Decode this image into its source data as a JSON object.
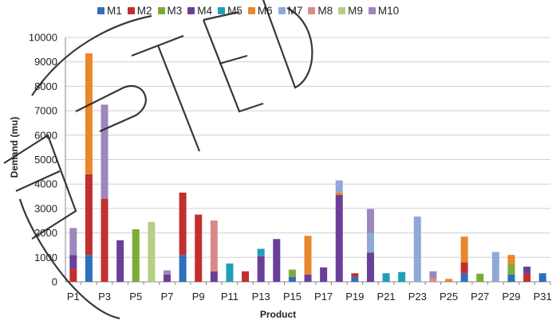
{
  "chart_data": {
    "type": "bar",
    "stacked": true,
    "title": "",
    "xlabel": "Product",
    "ylabel": "Demand (mu)",
    "ylim": [
      0,
      10000
    ],
    "yticks": [
      0,
      1000,
      2000,
      3000,
      4000,
      5000,
      6000,
      7000,
      8000,
      9000,
      10000
    ],
    "grid": true,
    "legend_position": "top",
    "categories": [
      "P1",
      "P2",
      "P3",
      "P4",
      "P5",
      "P6",
      "P7",
      "P8",
      "P9",
      "P10",
      "P11",
      "P12",
      "P13",
      "P14",
      "P15",
      "P16",
      "P17",
      "P18",
      "P19",
      "P20",
      "P21",
      "P22",
      "P23",
      "P24",
      "P25",
      "P26",
      "P27",
      "P28",
      "P29",
      "P30",
      "P31"
    ],
    "tick_labels": [
      "P1",
      "",
      "P3",
      "",
      "P5",
      "",
      "P7",
      "",
      "P9",
      "",
      "P11",
      "",
      "P13",
      "",
      "P15",
      "",
      "P17",
      "",
      "P19",
      "",
      "P21",
      "",
      "P23",
      "",
      "P25",
      "",
      "P27",
      "",
      "P29",
      "",
      "P31"
    ],
    "series": [
      {
        "name": "M1",
        "color": "#2f6fba",
        "values": [
          0,
          1100,
          0,
          0,
          0,
          0,
          0,
          1100,
          0,
          0,
          0,
          0,
          0,
          0,
          200,
          0,
          0,
          0,
          200,
          0,
          0,
          0,
          0,
          0,
          0,
          350,
          0,
          0,
          300,
          0,
          350
        ]
      },
      {
        "name": "M2",
        "color": "#c0302e",
        "values": [
          550,
          3300,
          3400,
          0,
          0,
          0,
          0,
          2550,
          2750,
          0,
          0,
          430,
          0,
          0,
          0,
          0,
          0,
          0,
          150,
          0,
          0,
          0,
          0,
          0,
          0,
          450,
          0,
          0,
          0,
          330,
          0
        ]
      },
      {
        "name": "M3",
        "color": "#7cac35",
        "values": [
          0,
          0,
          0,
          0,
          2150,
          0,
          0,
          0,
          0,
          0,
          0,
          0,
          0,
          0,
          300,
          0,
          0,
          0,
          0,
          0,
          0,
          0,
          0,
          0,
          0,
          0,
          330,
          0,
          420,
          0,
          0
        ]
      },
      {
        "name": "M4",
        "color": "#6a3f98",
        "values": [
          550,
          0,
          0,
          1700,
          0,
          0,
          300,
          0,
          0,
          430,
          0,
          0,
          1050,
          1750,
          0,
          300,
          590,
          3550,
          0,
          1200,
          0,
          0,
          0,
          0,
          0,
          0,
          0,
          0,
          0,
          290,
          0
        ]
      },
      {
        "name": "M5",
        "color": "#1f9fb6",
        "values": [
          0,
          0,
          0,
          0,
          0,
          0,
          0,
          0,
          0,
          0,
          750,
          0,
          300,
          0,
          0,
          0,
          0,
          0,
          0,
          0,
          350,
          400,
          0,
          0,
          0,
          0,
          0,
          0,
          0,
          0,
          0
        ]
      },
      {
        "name": "M6",
        "color": "#e8872c",
        "values": [
          0,
          4950,
          0,
          0,
          0,
          0,
          0,
          0,
          0,
          0,
          0,
          0,
          0,
          0,
          0,
          1580,
          0,
          100,
          0,
          0,
          0,
          0,
          0,
          0,
          120,
          1050,
          0,
          0,
          380,
          0,
          0
        ]
      },
      {
        "name": "M7",
        "color": "#8ea9d8",
        "values": [
          0,
          0,
          0,
          0,
          0,
          0,
          0,
          0,
          0,
          0,
          0,
          0,
          0,
          0,
          0,
          0,
          0,
          500,
          0,
          800,
          0,
          0,
          2670,
          0,
          0,
          0,
          0,
          1220,
          0,
          0,
          0
        ]
      },
      {
        "name": "M8",
        "color": "#d98a87",
        "values": [
          0,
          0,
          0,
          0,
          0,
          0,
          0,
          0,
          0,
          2080,
          0,
          0,
          0,
          0,
          0,
          0,
          0,
          0,
          0,
          0,
          0,
          0,
          0,
          150,
          0,
          0,
          0,
          0,
          0,
          0,
          0
        ]
      },
      {
        "name": "M9",
        "color": "#b5cf86",
        "values": [
          0,
          0,
          0,
          0,
          0,
          2450,
          0,
          0,
          0,
          0,
          0,
          0,
          0,
          0,
          0,
          0,
          0,
          0,
          0,
          0,
          0,
          0,
          0,
          0,
          0,
          0,
          0,
          0,
          0,
          0,
          0
        ]
      },
      {
        "name": "M10",
        "color": "#9d87bd",
        "values": [
          1100,
          0,
          3850,
          0,
          0,
          0,
          170,
          0,
          0,
          0,
          0,
          0,
          0,
          0,
          0,
          0,
          0,
          0,
          0,
          980,
          0,
          0,
          0,
          280,
          0,
          0,
          0,
          0,
          0,
          0,
          0
        ]
      }
    ]
  }
}
